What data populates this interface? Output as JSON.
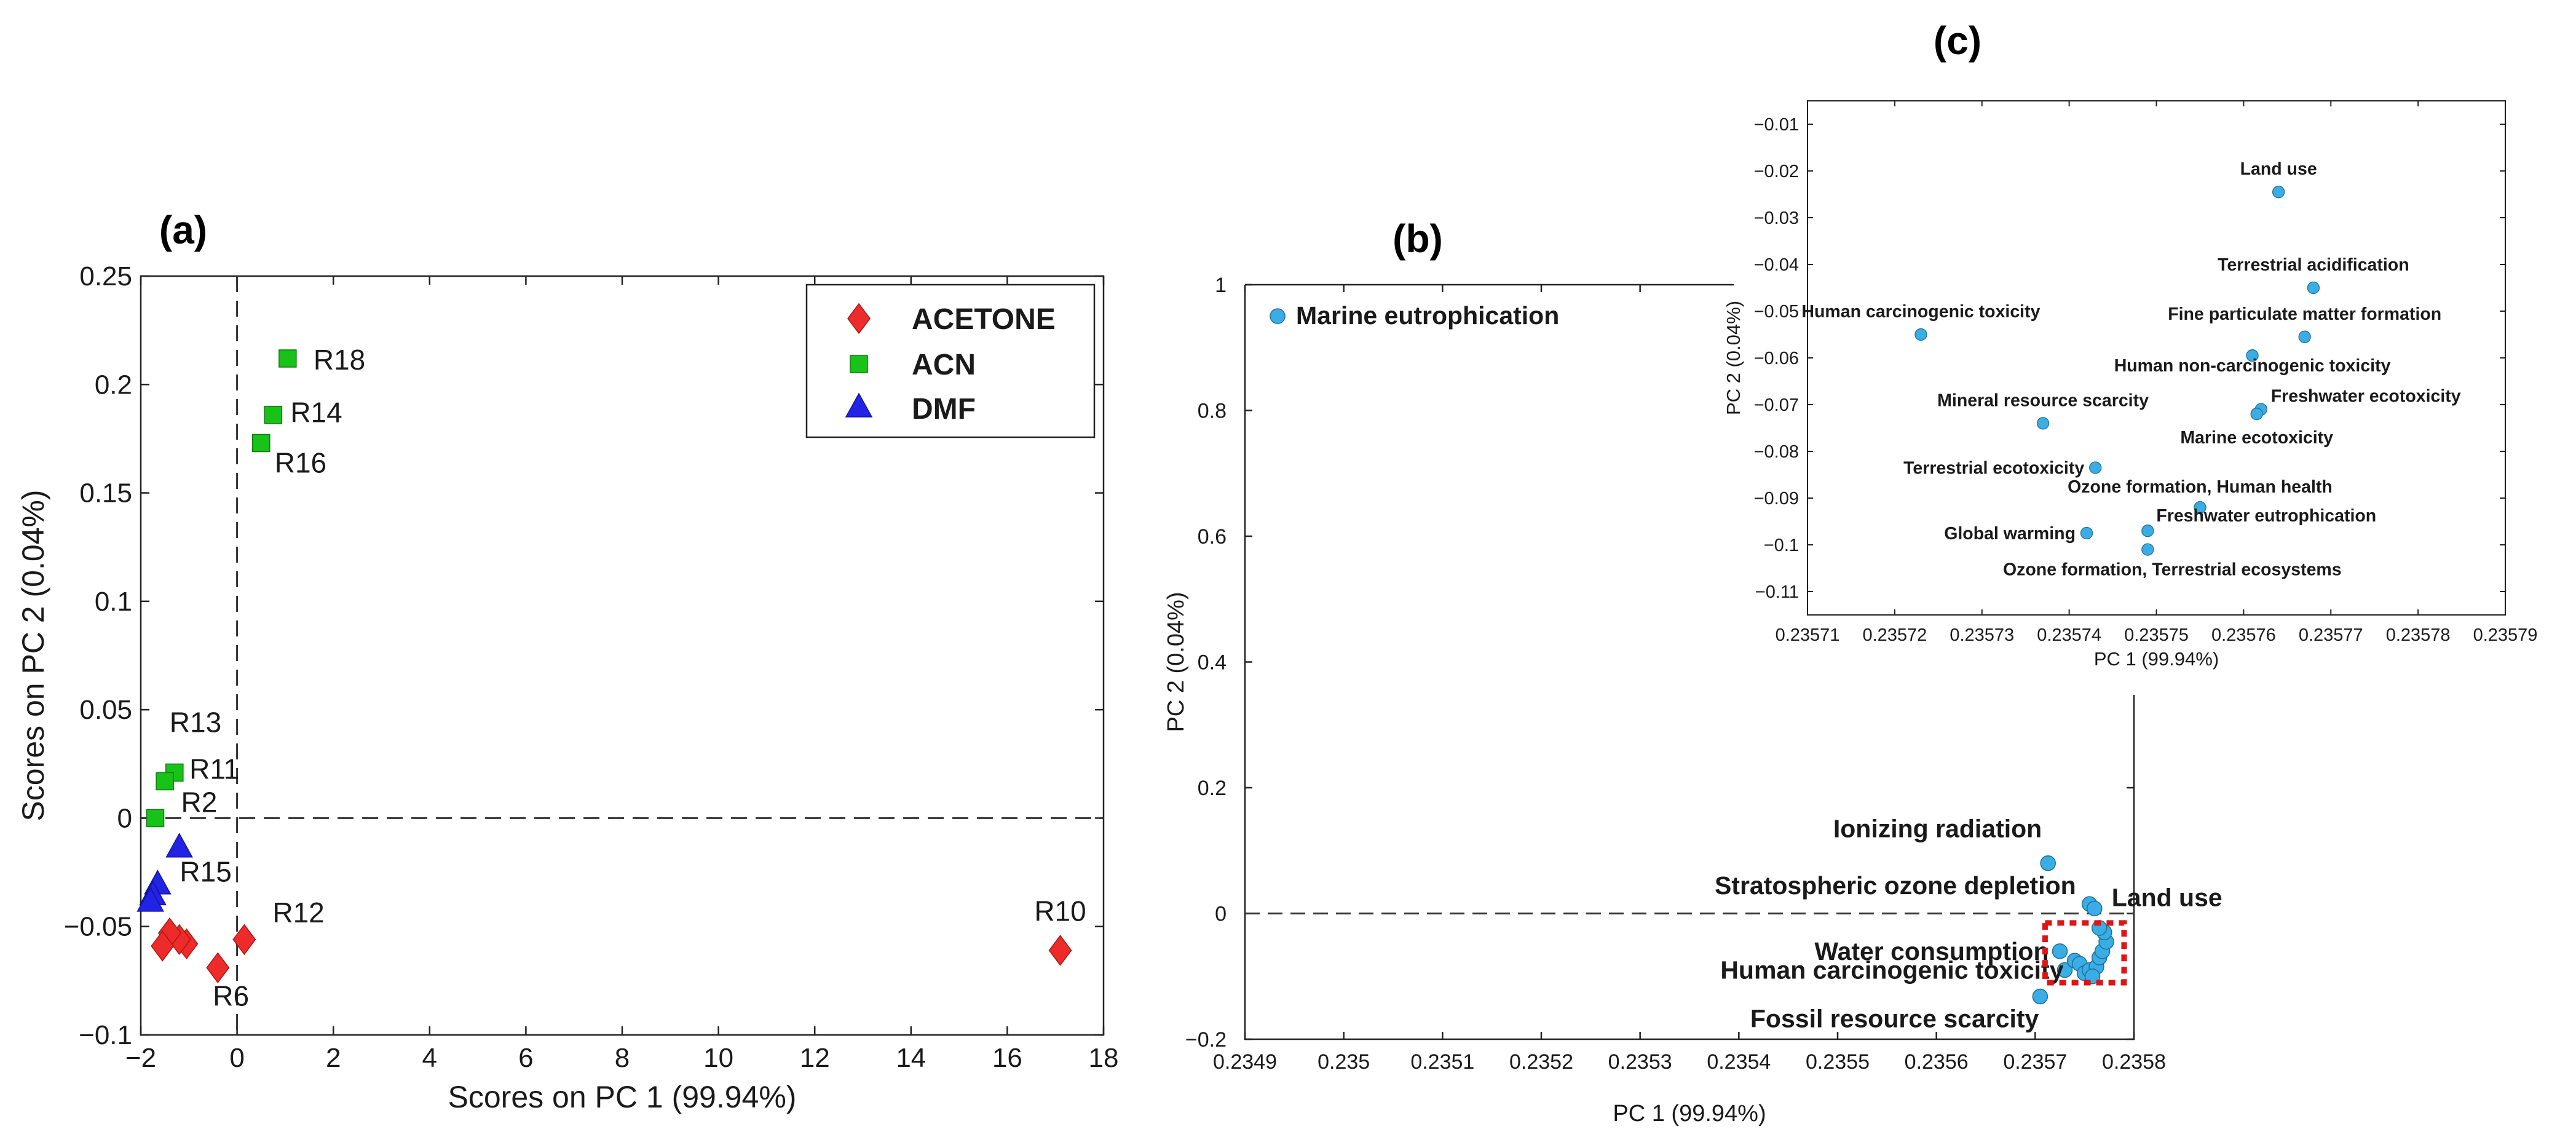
{
  "chart_data": [
    {
      "id": "a",
      "type": "scatter",
      "panel_label": "(a)",
      "xlabel": "Scores on PC 1 (99.94%)",
      "ylabel": "Scores on PC 2 (0.04%)",
      "xlim": [
        -2,
        18
      ],
      "ylim": [
        -0.1,
        0.25
      ],
      "xticks": [
        -2,
        0,
        2,
        4,
        6,
        8,
        10,
        12,
        14,
        16,
        18
      ],
      "xtick_labels": [
        "−2",
        "0",
        "2",
        "4",
        "6",
        "8",
        "10",
        "12",
        "14",
        "16",
        "18"
      ],
      "yticks": [
        -0.1,
        -0.05,
        0,
        0.05,
        0.1,
        0.15,
        0.2,
        0.25
      ],
      "ytick_labels": [
        "−0.1",
        "−0.05",
        "0",
        "0.05",
        "0.1",
        "0.15",
        "0.2",
        "0.25"
      ],
      "zero_lines": "dashed",
      "legend_position": "top-right",
      "series": [
        {
          "name": "ACETONE",
          "marker": "diamond",
          "color": "#ee2b2b",
          "points": [
            {
              "x": 17.1,
              "y": -0.061,
              "label": "R10"
            },
            {
              "x": 0.15,
              "y": -0.056,
              "label": "R12"
            },
            {
              "x": -0.4,
              "y": -0.069,
              "label": "R6"
            },
            {
              "x": -1.05,
              "y": -0.058,
              "label": ""
            },
            {
              "x": -1.2,
              "y": -0.056,
              "label": ""
            },
            {
              "x": -1.4,
              "y": -0.053,
              "label": ""
            },
            {
              "x": -1.55,
              "y": -0.059,
              "label": ""
            }
          ]
        },
        {
          "name": "ACN",
          "marker": "square",
          "color": "#19c219",
          "points": [
            {
              "x": 1.05,
              "y": 0.212,
              "label": "R18"
            },
            {
              "x": 0.75,
              "y": 0.186,
              "label": "R14"
            },
            {
              "x": 0.5,
              "y": 0.173,
              "label": "R16"
            },
            {
              "x": -1.3,
              "y": 0.021,
              "label": "R13"
            },
            {
              "x": -1.5,
              "y": 0.017,
              "label": "R11"
            },
            {
              "x": -1.7,
              "y": 0.0,
              "label": "R2"
            }
          ]
        },
        {
          "name": "DMF",
          "marker": "triangle",
          "color": "#2323e6",
          "points": [
            {
              "x": -1.2,
              "y": -0.014,
              "label": ""
            },
            {
              "x": -1.65,
              "y": -0.031,
              "label": "R15"
            },
            {
              "x": -1.75,
              "y": -0.036,
              "label": ""
            },
            {
              "x": -1.8,
              "y": -0.039,
              "label": ""
            }
          ]
        }
      ],
      "legend": [
        "ACETONE",
        "ACN",
        "DMF"
      ]
    },
    {
      "id": "b",
      "type": "scatter",
      "panel_label": "(b)",
      "xlabel": "PC 1 (99.94%)",
      "ylabel": "PC 2 (0.04%)",
      "xlim": [
        0.2349,
        0.2358
      ],
      "ylim": [
        -0.2,
        1
      ],
      "xticks": [
        0.2349,
        0.235,
        0.2351,
        0.2352,
        0.2353,
        0.2354,
        0.2355,
        0.2356,
        0.2357,
        0.2358
      ],
      "xtick_labels": [
        "0.2349",
        "0.235",
        "0.2351",
        "0.2352",
        "0.2353",
        "0.2354",
        "0.2355",
        "0.2356",
        "0.2357",
        "0.2358"
      ],
      "yticks": [
        -0.2,
        0,
        0.2,
        0.4,
        0.6,
        0.8,
        1
      ],
      "ytick_labels": [
        "−0.2",
        "0",
        "0.2",
        "0.4",
        "0.6",
        "0.8",
        "1"
      ],
      "zero_lines": "dashed",
      "marker_color": "#3aaee4",
      "points": [
        {
          "x": 0.234933,
          "y": 0.95,
          "label": "Marine eutrophication"
        },
        {
          "x": 0.235713,
          "y": 0.08,
          "label": "Ionizing radiation"
        },
        {
          "x": 0.235755,
          "y": 0.015,
          "label": "Stratospheric ozone depletion"
        },
        {
          "x": 0.23576,
          "y": 0.008,
          "label": "Land use"
        },
        {
          "x": 0.235725,
          "y": -0.06,
          "label": "Water consumption"
        },
        {
          "x": 0.23573,
          "y": -0.09,
          "label": "Human carcinogenic toxicity"
        },
        {
          "x": 0.235705,
          "y": -0.132,
          "label": "Fossil resource scarcity"
        },
        {
          "x": 0.23574,
          "y": -0.075,
          "label": ""
        },
        {
          "x": 0.235745,
          "y": -0.08,
          "label": ""
        },
        {
          "x": 0.23575,
          "y": -0.095,
          "label": ""
        },
        {
          "x": 0.235755,
          "y": -0.09,
          "label": ""
        },
        {
          "x": 0.235762,
          "y": -0.085,
          "label": ""
        },
        {
          "x": 0.235765,
          "y": -0.07,
          "label": ""
        },
        {
          "x": 0.235768,
          "y": -0.06,
          "label": ""
        },
        {
          "x": 0.235772,
          "y": -0.045,
          "label": ""
        },
        {
          "x": 0.23577,
          "y": -0.03,
          "label": ""
        },
        {
          "x": 0.235765,
          "y": -0.023,
          "label": ""
        },
        {
          "x": 0.235758,
          "y": -0.1,
          "label": ""
        }
      ]
    },
    {
      "id": "c",
      "type": "scatter",
      "panel_label": "(c)",
      "xlabel": "PC 1 (99.94%)",
      "ylabel": "PC 2 (0.04%)",
      "xlim": [
        0.23571,
        0.23579
      ],
      "ylim": [
        -0.115,
        -0.005
      ],
      "xticks": [
        0.23571,
        0.23572,
        0.23573,
        0.23574,
        0.23575,
        0.23576,
        0.23577,
        0.23578,
        0.23579
      ],
      "xtick_labels": [
        "0.23571",
        "0.23572",
        "0.23573",
        "0.23574",
        "0.23575",
        "0.23576",
        "0.23577",
        "0.23578",
        "0.23579"
      ],
      "yticks": [
        -0.11,
        -0.1,
        -0.09,
        -0.08,
        -0.07,
        -0.06,
        -0.05,
        -0.04,
        -0.03,
        -0.02,
        -0.01
      ],
      "ytick_labels": [
        "−0.11",
        "−0.1",
        "−0.09",
        "−0.08",
        "−0.07",
        "−0.06",
        "−0.05",
        "−0.04",
        "−0.03",
        "−0.02",
        "−0.01"
      ],
      "marker_color": "#3aaee4",
      "points": [
        {
          "x": 0.235764,
          "y": -0.0245,
          "label": "Land use",
          "anchor": "middle",
          "dx": 0,
          "dy": -28
        },
        {
          "x": 0.235768,
          "y": -0.045,
          "label": "Terrestrial acidification",
          "anchor": "middle",
          "dx": 0,
          "dy": -28
        },
        {
          "x": 0.235723,
          "y": -0.055,
          "label": "Human carcinogenic toxicity",
          "anchor": "middle",
          "dx": 0,
          "dy": -28
        },
        {
          "x": 0.235767,
          "y": -0.0555,
          "label": "Fine particulate matter formation",
          "anchor": "middle",
          "dx": 0,
          "dy": -28
        },
        {
          "x": 0.235761,
          "y": -0.0595,
          "label": "Human non-carcinogenic toxicity",
          "anchor": "middle",
          "dx": 0,
          "dy": 26
        },
        {
          "x": 0.235762,
          "y": -0.071,
          "label": "Freshwater ecotoxicity",
          "anchor": "start",
          "dx": 16,
          "dy": -12
        },
        {
          "x": 0.2357615,
          "y": -0.072,
          "label": "Marine ecotoxicity",
          "anchor": "middle",
          "dx": 0,
          "dy": 48
        },
        {
          "x": 0.235737,
          "y": -0.074,
          "label": "Mineral resource scarcity",
          "anchor": "middle",
          "dx": 0,
          "dy": -28
        },
        {
          "x": 0.235743,
          "y": -0.0835,
          "label": "Terrestrial ecotoxicity",
          "anchor": "end",
          "dx": -18,
          "dy": 10
        },
        {
          "x": 0.235755,
          "y": -0.092,
          "label": "Ozone formation, Human health",
          "anchor": "middle",
          "dx": 0,
          "dy": -24
        },
        {
          "x": 0.235742,
          "y": -0.0975,
          "label": "Global warming",
          "anchor": "end",
          "dx": -18,
          "dy": 10
        },
        {
          "x": 0.235749,
          "y": -0.097,
          "label": "Freshwater eutrophication",
          "anchor": "start",
          "dx": 14,
          "dy": -15
        },
        {
          "x": 0.235749,
          "y": -0.101,
          "label": "Ozone formation, Terrestrial ecosystems",
          "anchor": "middle",
          "dx": 40,
          "dy": 42
        }
      ]
    }
  ]
}
